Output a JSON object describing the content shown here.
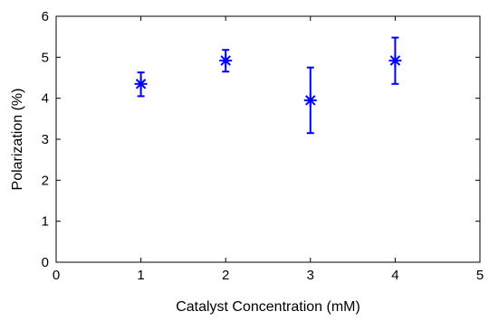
{
  "chart_data": {
    "type": "scatter",
    "xlabel": "Catalyst Concentration (mM)",
    "ylabel": "Polarization (%)",
    "xlim": [
      0,
      5
    ],
    "ylim": [
      0,
      6
    ],
    "xticks": [
      "0",
      "1",
      "2",
      "3",
      "4",
      "5"
    ],
    "yticks": [
      "0",
      "1",
      "2",
      "3",
      "4",
      "5",
      "6"
    ],
    "grid": false,
    "marker": "asterisk",
    "color": "#0000ff",
    "series": [
      {
        "points": [
          {
            "x": 1,
            "y": 4.35,
            "err_low": 4.05,
            "err_high": 4.63
          },
          {
            "x": 2,
            "y": 4.92,
            "err_low": 4.65,
            "err_high": 5.18
          },
          {
            "x": 3,
            "y": 3.95,
            "err_low": 3.15,
            "err_high": 4.75
          },
          {
            "x": 4,
            "y": 4.92,
            "err_low": 4.35,
            "err_high": 5.48
          }
        ]
      }
    ]
  }
}
